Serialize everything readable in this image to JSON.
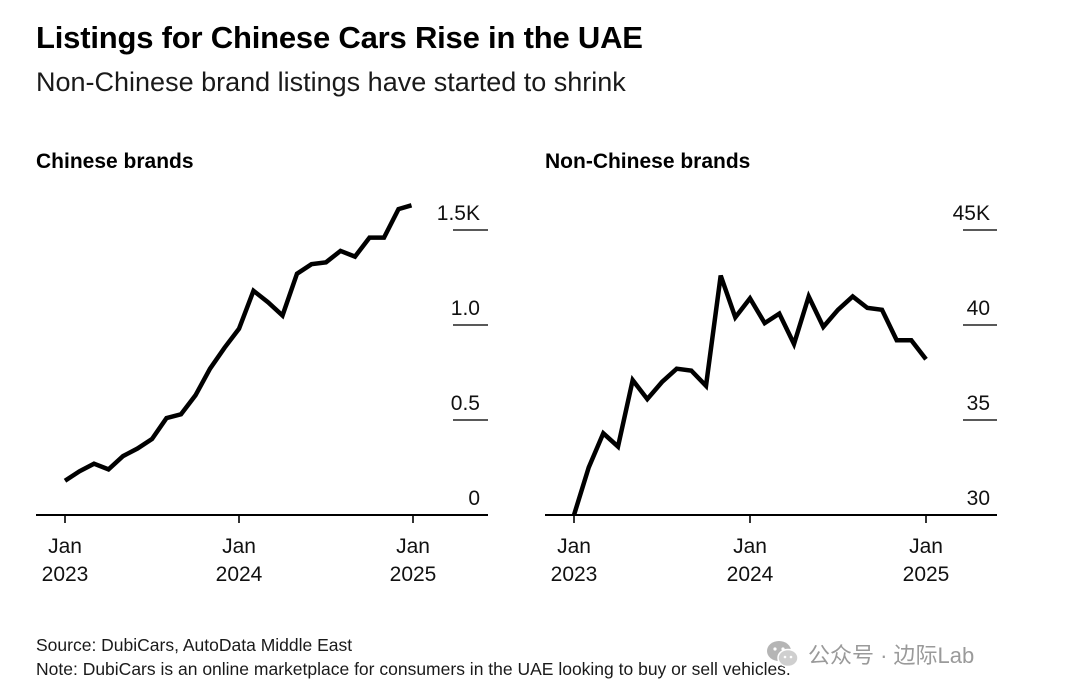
{
  "header": {
    "title": "Listings for Chinese Cars Rise in the UAE",
    "subtitle": "Non-Chinese brand listings have started to shrink"
  },
  "chart_data": [
    {
      "type": "line",
      "panel_title": "Chinese brands",
      "x_start": "2023-01",
      "x_step": "month",
      "x_ticks": [
        {
          "label": [
            "Jan",
            "2023"
          ],
          "index": 0
        },
        {
          "label": [
            "Jan",
            "2024"
          ],
          "index": 12
        },
        {
          "label": [
            "Jan",
            "2025"
          ],
          "index": 24
        }
      ],
      "y_ticks": [
        {
          "value": 0,
          "label": "0"
        },
        {
          "value": 0.5,
          "label": "0.5"
        },
        {
          "value": 1.0,
          "label": "1.0"
        },
        {
          "value": 1.5,
          "label": "1.5K"
        }
      ],
      "ylim": [
        0,
        1.5
      ],
      "y_unit": "thousand listings",
      "series": [
        {
          "name": "Chinese brands",
          "points": [
            [
              0,
              0.18
            ],
            [
              1,
              0.23
            ],
            [
              2,
              0.27
            ],
            [
              3,
              0.24
            ],
            [
              4,
              0.31
            ],
            [
              5,
              0.35
            ],
            [
              6,
              0.4
            ],
            [
              7,
              0.51
            ],
            [
              8,
              0.53
            ],
            [
              9,
              0.63
            ],
            [
              10,
              0.77
            ],
            [
              11,
              0.88
            ],
            [
              12,
              0.98
            ],
            [
              13,
              1.18
            ],
            [
              14,
              1.12
            ],
            [
              15,
              1.05
            ],
            [
              16,
              1.27
            ],
            [
              17,
              1.32
            ],
            [
              18,
              1.33
            ],
            [
              19,
              1.39
            ],
            [
              20,
              1.36
            ],
            [
              21,
              1.46
            ],
            [
              22,
              1.46
            ],
            [
              23,
              1.61
            ],
            [
              23.9,
              1.63
            ]
          ]
        }
      ]
    },
    {
      "type": "line",
      "panel_title": "Non-Chinese brands",
      "x_start": "2023-01",
      "x_step": "month",
      "x_ticks": [
        {
          "label": [
            "Jan",
            "2023"
          ],
          "index": 0
        },
        {
          "label": [
            "Jan",
            "2024"
          ],
          "index": 12
        },
        {
          "label": [
            "Jan",
            "2025"
          ],
          "index": 24
        }
      ],
      "y_ticks": [
        {
          "value": 30,
          "label": "30"
        },
        {
          "value": 35,
          "label": "35"
        },
        {
          "value": 40,
          "label": "40"
        },
        {
          "value": 45,
          "label": "45K"
        }
      ],
      "ylim": [
        30,
        45
      ],
      "y_unit": "thousand listings",
      "series": [
        {
          "name": "Non-Chinese brands",
          "points": [
            [
              0,
              30.0
            ],
            [
              1,
              32.5
            ],
            [
              2,
              34.3
            ],
            [
              3,
              33.6
            ],
            [
              4,
              37.1
            ],
            [
              5,
              36.1
            ],
            [
              6,
              37.0
            ],
            [
              7,
              37.7
            ],
            [
              8,
              37.6
            ],
            [
              9,
              36.8
            ],
            [
              10,
              42.6
            ],
            [
              11,
              40.4
            ],
            [
              12,
              41.4
            ],
            [
              13,
              40.1
            ],
            [
              14,
              40.6
            ],
            [
              15,
              39.0
            ],
            [
              16,
              41.5
            ],
            [
              17,
              39.9
            ],
            [
              18,
              40.8
            ],
            [
              19,
              41.5
            ],
            [
              20,
              40.9
            ],
            [
              21,
              40.8
            ],
            [
              22,
              39.2
            ],
            [
              23,
              39.2
            ],
            [
              24,
              38.2
            ]
          ]
        }
      ]
    }
  ],
  "footer": {
    "source": "Source: DubiCars, AutoData Middle East",
    "note": "Note: DubiCars is an online marketplace for consumers in the UAE looking to buy or sell vehicles."
  },
  "watermark": {
    "text": "公众号 · 边际Lab",
    "logo_icon": "wechat-logo-icon"
  },
  "colors": {
    "line": "#000000",
    "axis": "#000000",
    "tick": "#1a1a1a"
  }
}
